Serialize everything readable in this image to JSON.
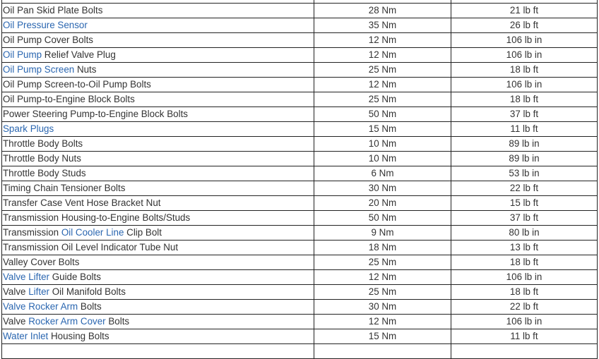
{
  "colors": {
    "text": "#333333",
    "link": "#2a66b0",
    "border": "#222222"
  },
  "table": {
    "rows": [
      {
        "name": [
          {
            "text": "",
            "link": false
          }
        ],
        "nm": "",
        "imperial": ""
      },
      {
        "name": [
          {
            "text": "Oil Pan Skid Plate Bolts",
            "link": false
          }
        ],
        "nm": "28 Nm",
        "imperial": "21 lb ft"
      },
      {
        "name": [
          {
            "text": "Oil Pressure Sensor",
            "link": true
          }
        ],
        "nm": "35 Nm",
        "imperial": "26 lb ft"
      },
      {
        "name": [
          {
            "text": "Oil Pump Cover Bolts",
            "link": false
          }
        ],
        "nm": "12 Nm",
        "imperial": "106 lb in"
      },
      {
        "name": [
          {
            "text": "Oil Pump",
            "link": true
          },
          {
            "text": " Relief Valve Plug",
            "link": false
          }
        ],
        "nm": "12 Nm",
        "imperial": "106 lb in"
      },
      {
        "name": [
          {
            "text": "Oil Pump Screen",
            "link": true
          },
          {
            "text": " Nuts",
            "link": false
          }
        ],
        "nm": "25 Nm",
        "imperial": "18 lb ft"
      },
      {
        "name": [
          {
            "text": "Oil Pump Screen-to-Oil Pump Bolts",
            "link": false
          }
        ],
        "nm": "12 Nm",
        "imperial": "106 lb in"
      },
      {
        "name": [
          {
            "text": "Oil Pump-to-Engine Block Bolts",
            "link": false
          }
        ],
        "nm": "25 Nm",
        "imperial": "18 lb ft"
      },
      {
        "name": [
          {
            "text": "Power Steering Pump-to-Engine Block Bolts",
            "link": false
          }
        ],
        "nm": "50 Nm",
        "imperial": "37 lb ft"
      },
      {
        "name": [
          {
            "text": "Spark Plugs",
            "link": true
          }
        ],
        "nm": "15 Nm",
        "imperial": "11 lb ft"
      },
      {
        "name": [
          {
            "text": "Throttle Body Bolts",
            "link": false
          }
        ],
        "nm": "10 Nm",
        "imperial": "89 lb in"
      },
      {
        "name": [
          {
            "text": "Throttle Body Nuts",
            "link": false
          }
        ],
        "nm": "10 Nm",
        "imperial": "89 lb in"
      },
      {
        "name": [
          {
            "text": "Throttle Body Studs",
            "link": false
          }
        ],
        "nm": "6 Nm",
        "imperial": "53 lb in"
      },
      {
        "name": [
          {
            "text": "Timing Chain Tensioner Bolts",
            "link": false
          }
        ],
        "nm": "30 Nm",
        "imperial": "22 lb ft"
      },
      {
        "name": [
          {
            "text": "Transfer Case Vent Hose Bracket Nut",
            "link": false
          }
        ],
        "nm": "20 Nm",
        "imperial": "15 lb ft"
      },
      {
        "name": [
          {
            "text": "Transmission Housing-to-Engine Bolts/Studs",
            "link": false
          }
        ],
        "nm": "50 Nm",
        "imperial": "37 lb ft"
      },
      {
        "name": [
          {
            "text": "Transmission ",
            "link": false
          },
          {
            "text": "Oil Cooler Line",
            "link": true
          },
          {
            "text": " Clip Bolt",
            "link": false
          }
        ],
        "nm": "9 Nm",
        "imperial": "80 lb in"
      },
      {
        "name": [
          {
            "text": "Transmission Oil Level Indicator Tube Nut",
            "link": false
          }
        ],
        "nm": "18 Nm",
        "imperial": "13 lb ft"
      },
      {
        "name": [
          {
            "text": "Valley Cover Bolts",
            "link": false
          }
        ],
        "nm": "25 Nm",
        "imperial": "18 lb ft"
      },
      {
        "name": [
          {
            "text": "Valve Lifter",
            "link": true
          },
          {
            "text": " Guide Bolts",
            "link": false
          }
        ],
        "nm": "12 Nm",
        "imperial": "106 lb in"
      },
      {
        "name": [
          {
            "text": "Valve ",
            "link": false
          },
          {
            "text": "Lifter",
            "link": true
          },
          {
            "text": " Oil Manifold Bolts",
            "link": false
          }
        ],
        "nm": "25 Nm",
        "imperial": "18 lb ft"
      },
      {
        "name": [
          {
            "text": "Valve Rocker Arm",
            "link": true
          },
          {
            "text": " Bolts",
            "link": false
          }
        ],
        "nm": "30 Nm",
        "imperial": "22 lb ft"
      },
      {
        "name": [
          {
            "text": "Valve ",
            "link": false
          },
          {
            "text": "Rocker Arm Cover",
            "link": true
          },
          {
            "text": " Bolts",
            "link": false
          }
        ],
        "nm": "12 Nm",
        "imperial": "106 lb in"
      },
      {
        "name": [
          {
            "text": "Water Inlet",
            "link": true
          },
          {
            "text": " Housing Bolts",
            "link": false
          }
        ],
        "nm": "15 Nm",
        "imperial": "11 lb ft"
      },
      {
        "name": [
          {
            "text": "",
            "link": false
          }
        ],
        "nm": "",
        "imperial": ""
      }
    ]
  }
}
